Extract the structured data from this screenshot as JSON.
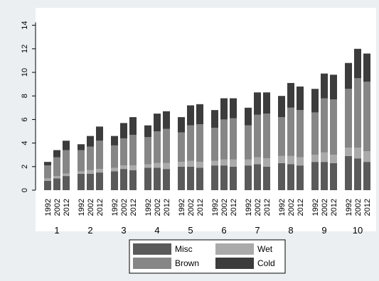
{
  "chart_data": {
    "type": "bar",
    "stacked": true,
    "title": "",
    "xlabel": "",
    "ylabel": "",
    "ylim": [
      0,
      14
    ],
    "yticks": [
      0,
      2,
      4,
      6,
      8,
      10,
      12,
      14
    ],
    "grid": false,
    "legend_position": "bottom",
    "groups": [
      "1",
      "2",
      "3",
      "4",
      "5",
      "6",
      "7",
      "8",
      "9",
      "10"
    ],
    "years": [
      "1992",
      "2002",
      "2012"
    ],
    "series": [
      {
        "name": "Misc",
        "color": "#5a5a5a",
        "values": [
          [
            0.8,
            1.0,
            1.2
          ],
          [
            1.4,
            1.4,
            1.5
          ],
          [
            1.6,
            1.8,
            1.7
          ],
          [
            1.9,
            1.9,
            1.8
          ],
          [
            2.0,
            2.0,
            1.9
          ],
          [
            2.1,
            2.1,
            2.0
          ],
          [
            2.1,
            2.2,
            2.0
          ],
          [
            2.3,
            2.2,
            2.1
          ],
          [
            2.4,
            2.4,
            2.3
          ],
          [
            2.9,
            2.7,
            2.4
          ]
        ]
      },
      {
        "name": "Wet",
        "color": "#aaaaaa",
        "values": [
          [
            0.2,
            0.2,
            0.2
          ],
          [
            0.2,
            0.3,
            0.3
          ],
          [
            0.3,
            0.3,
            0.4
          ],
          [
            0.3,
            0.4,
            0.5
          ],
          [
            0.4,
            0.5,
            0.5
          ],
          [
            0.4,
            0.5,
            0.6
          ],
          [
            0.5,
            0.6,
            0.7
          ],
          [
            0.6,
            0.7,
            0.7
          ],
          [
            0.6,
            0.8,
            0.7
          ],
          [
            0.7,
            0.9,
            0.9
          ]
        ]
      },
      {
        "name": "Brown",
        "color": "#868686",
        "values": [
          [
            1.1,
            1.6,
            2.0
          ],
          [
            1.8,
            2.0,
            2.4
          ],
          [
            1.9,
            2.3,
            2.6
          ],
          [
            2.3,
            2.7,
            2.9
          ],
          [
            2.5,
            3.0,
            3.2
          ],
          [
            2.8,
            3.4,
            3.5
          ],
          [
            2.9,
            3.6,
            3.8
          ],
          [
            3.3,
            4.1,
            4.0
          ],
          [
            3.6,
            4.6,
            4.7
          ],
          [
            5.0,
            5.9,
            5.9
          ]
        ]
      },
      {
        "name": "Cold",
        "color": "#3c3c3c",
        "values": [
          [
            0.3,
            0.6,
            0.8
          ],
          [
            0.5,
            0.9,
            1.2
          ],
          [
            0.8,
            1.3,
            1.5
          ],
          [
            1.0,
            1.5,
            1.5
          ],
          [
            1.3,
            1.7,
            1.7
          ],
          [
            1.5,
            1.8,
            1.7
          ],
          [
            1.5,
            1.9,
            1.8
          ],
          [
            1.8,
            2.1,
            2.0
          ],
          [
            2.0,
            2.1,
            2.1
          ],
          [
            2.2,
            2.5,
            2.4
          ]
        ]
      }
    ],
    "legend": [
      "Misc",
      "Wet",
      "Brown",
      "Cold"
    ]
  }
}
